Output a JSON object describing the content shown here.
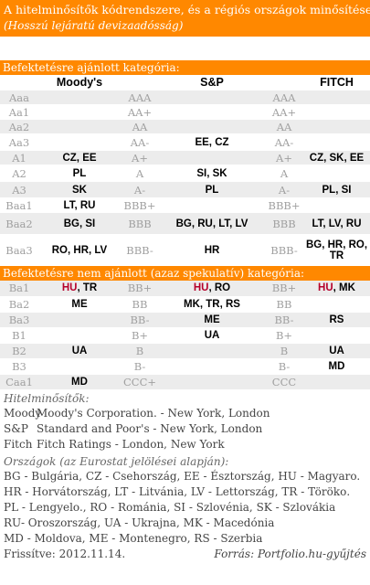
{
  "title": {
    "line1": "A hitelminősítők kódrendszere, és a régiós országok minősítése",
    "line2": "(Hosszú lejáratú devizaadósság)"
  },
  "section1_label": "Befektetésre ajánlott kategória:",
  "section2_label": "Befektetésre nem ajánlott (azaz spekulatív) kategória:",
  "headers": {
    "moodys": "Moody's",
    "sp": "S&P",
    "fitch": "FITCH"
  },
  "rows_investment": [
    {
      "m": "Aaa",
      "mv": "",
      "s": "AAA",
      "sv": "",
      "f": "AAA",
      "fv": ""
    },
    {
      "m": "Aa1",
      "mv": "",
      "s": "AA+",
      "sv": "",
      "f": "AA+",
      "fv": ""
    },
    {
      "m": "Aa2",
      "mv": "",
      "s": "AA",
      "sv": "",
      "f": "AA",
      "fv": ""
    },
    {
      "m": "Aa3",
      "mv": "",
      "s": "AA-",
      "sv": "EE, CZ",
      "f": "AA-",
      "fv": ""
    },
    {
      "m": "A1",
      "mv": "CZ, EE",
      "s": "A+",
      "sv": "",
      "f": "A+",
      "fv": "CZ, SK, EE"
    },
    {
      "m": "A2",
      "mv": "PL",
      "s": "A",
      "sv": "SI, SK",
      "f": "A",
      "fv": ""
    },
    {
      "m": "A3",
      "mv": "SK",
      "s": "A-",
      "sv": "PL",
      "f": "A-",
      "fv": "PL, SI"
    },
    {
      "m": "Baa1",
      "mv": "LT, RU",
      "s": "BBB+",
      "sv": "",
      "f": "BBB+",
      "fv": ""
    },
    {
      "m": "Baa2",
      "mv": "BG, SI",
      "s": "BBB",
      "sv": "BG, RU, LT, LV",
      "f": "BBB",
      "fv": "LT, LV, RU"
    },
    {
      "m": "Baa3",
      "mv": "RO, HR, LV",
      "s": "BBB-",
      "sv": "HR",
      "f": "BBB-",
      "fv": "BG, HR, RO, TR"
    }
  ],
  "rows_spec": [
    {
      "m": "Ba1",
      "mv_red": "HU",
      "mv": ", TR",
      "s": "BB+",
      "sv_red": "HU",
      "sv": ", RO",
      "f": "BB+",
      "fv_red": "HU",
      "fv": ", MK"
    },
    {
      "m": "Ba2",
      "mv_red": "",
      "mv": "ME",
      "s": "BB",
      "sv_red": "",
      "sv": "MK, TR, RS",
      "f": "BB",
      "fv_red": "",
      "fv": ""
    },
    {
      "m": "Ba3",
      "mv_red": "",
      "mv": "",
      "s": "BB-",
      "sv_red": "",
      "sv": "ME",
      "f": "BB-",
      "fv_red": "",
      "fv": "RS"
    },
    {
      "m": "B1",
      "mv_red": "",
      "mv": "",
      "s": "B+",
      "sv_red": "",
      "sv": "UA",
      "f": "B+",
      "fv_red": "",
      "fv": ""
    },
    {
      "m": "B2",
      "mv_red": "",
      "mv": "UA",
      "s": "B",
      "sv_red": "",
      "sv": "",
      "f": "B",
      "fv_red": "",
      "fv": "UA"
    },
    {
      "m": "B3",
      "mv_red": "",
      "mv": "",
      "s": "B-",
      "sv_red": "",
      "sv": "",
      "f": "B-",
      "fv_red": "",
      "fv": "MD"
    },
    {
      "m": "Caa1",
      "mv_red": "",
      "mv": "MD",
      "s": "CCC+",
      "sv_red": "",
      "sv": "",
      "f": "CCC",
      "fv_red": "",
      "fv": ""
    }
  ],
  "agencies_heading": "Hitelminősítők:",
  "agencies": [
    {
      "abbr": "Moody",
      "name": "Moody's Corporation. - New York, London"
    },
    {
      "abbr": "S&P",
      "name": "Standard and Poor's  - New York, London"
    },
    {
      "abbr": "Fitch",
      "name": "Fitch Ratings - London, New York"
    }
  ],
  "countries_heading": "Országok (az Eurostat jelölései alapján):",
  "countries_lines": [
    "BG - Bulgária, CZ - Csehország, EE - Észtország, HU - Magyaro.",
    "HR - Horvátország, LT - Litvánia, LV - Lettország, TR - Törökо.",
    "PL - Lengyelo., RO - Románia, SI - Szlovénia, SK - Szlovákia",
    "RU- Oroszország, UA - Ukrajna, MK - Macedónia",
    "MD - Moldova, ME - Montenegro, RS - Szerbia"
  ],
  "updated": "Frissítve: 2012.11.14.",
  "source": "Forrás: Portfolio.hu-gyűjtés",
  "colors": {
    "accent": "#ff8800",
    "highlight": "#b5002b",
    "stripe": "#ececec",
    "grade_text": "#a0a0a0"
  }
}
